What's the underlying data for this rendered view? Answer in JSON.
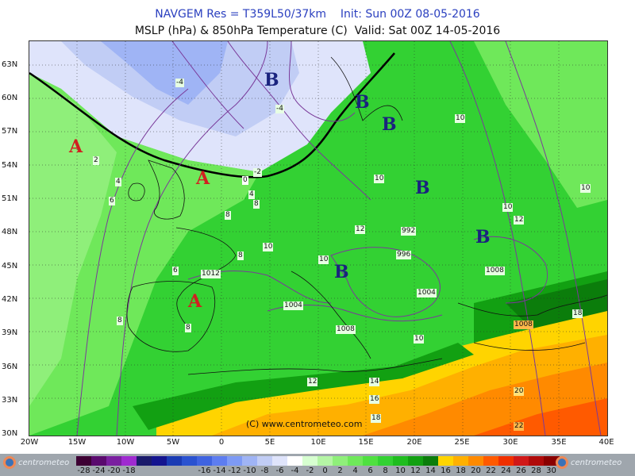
{
  "header": {
    "line1": "NAVGEM Res = T359L50/37km    Init: Sun 00Z 08-05-2016",
    "line2": "MSLP (hPa) & 850hPa Temperature (C)  Valid: Sat 00Z 14-05-2016"
  },
  "axes": {
    "lat_labels": [
      "63N",
      "60N",
      "57N",
      "54N",
      "51N",
      "48N",
      "45N",
      "42N",
      "39N",
      "36N",
      "33N",
      "30N"
    ],
    "lon_labels": [
      "20W",
      "15W",
      "10W",
      "5W",
      "0",
      "5E",
      "10E",
      "15E",
      "20E",
      "25E",
      "30E",
      "35E",
      "40E"
    ]
  },
  "pressure_centers": [
    {
      "type": "A",
      "label": "A"
    },
    {
      "type": "A",
      "label": "A"
    },
    {
      "type": "A",
      "label": "A"
    },
    {
      "type": "B",
      "label": "B"
    },
    {
      "type": "B",
      "label": "B"
    },
    {
      "type": "B",
      "label": "B"
    },
    {
      "type": "B",
      "label": "B"
    },
    {
      "type": "B",
      "label": "B"
    },
    {
      "type": "B",
      "label": "B"
    }
  ],
  "contour_labels": [
    "-4",
    "-4",
    "-2",
    "0",
    "2",
    "4",
    "4",
    "6",
    "6",
    "8",
    "8",
    "8",
    "8",
    "8",
    "10",
    "10",
    "10",
    "10",
    "10",
    "10",
    "10",
    "12",
    "12",
    "12",
    "14",
    "16",
    "18",
    "18",
    "20",
    "22",
    "1012",
    "1004",
    "1008",
    "1008",
    "1008",
    "996",
    "992",
    "1004"
  ],
  "credit": "(C)  www.centrometeo.com",
  "legend": {
    "colors": [
      "#3d0033",
      "#5a0a6e",
      "#7a1fa0",
      "#9f2ad0",
      "#1a1a6b",
      "#14148f",
      "#1a3bb4",
      "#2a52d0",
      "#3f63e0",
      "#5d7df0",
      "#7d9af5",
      "#9fb4f5",
      "#c1cdf5",
      "#dfe4fb",
      "#ffffff",
      "#d7ffd0",
      "#b5f5a5",
      "#8fef7a",
      "#6fe85a",
      "#4fe040",
      "#33d133",
      "#1fbd1f",
      "#12a012",
      "#0b7d0b",
      "#ffd400",
      "#ffb000",
      "#ff8a00",
      "#ff5a00",
      "#f03000",
      "#d01818",
      "#b00a0a",
      "#8a0000"
    ],
    "values": [
      "-28",
      "-24",
      "-20",
      "-18",
      "-16",
      "-14",
      "-12",
      "-10",
      "-8",
      "-6",
      "-4",
      "-2",
      "0",
      "2",
      "4",
      "6",
      "8",
      "10",
      "12",
      "14",
      "16",
      "18",
      "20",
      "22",
      "24",
      "26",
      "28",
      "30"
    ],
    "logo_text": "centrometeo"
  }
}
